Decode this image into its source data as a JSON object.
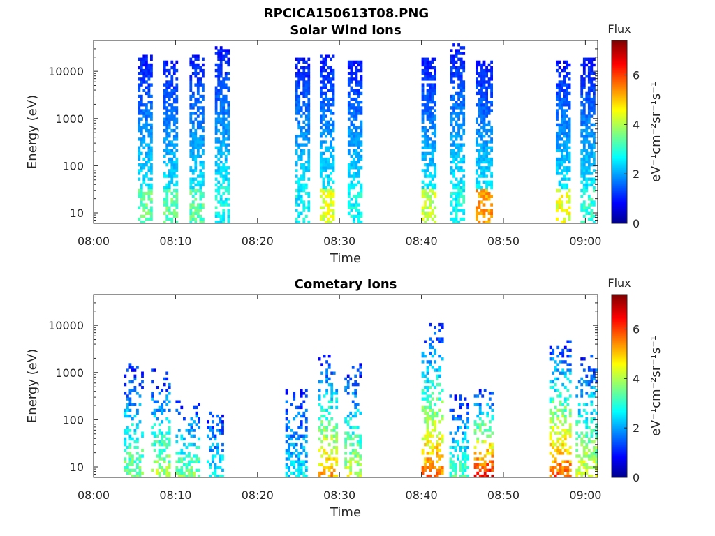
{
  "figure": {
    "title": "RPCICA150613T08.PNG"
  },
  "colorbar_scale": {
    "label": "Flux",
    "unit_label": "eV⁻¹cm⁻²sr⁻¹s⁻¹",
    "ticks": [
      0,
      2,
      4,
      6
    ],
    "range": [
      0,
      7.4
    ],
    "colormap": "jet",
    "colors": [
      "#00008f",
      "#0000ff",
      "#00ffff",
      "#ffff00",
      "#ff0000",
      "#800000"
    ]
  },
  "chart_data": [
    {
      "type": "heatmap",
      "title": "Solar Wind Ions",
      "xlabel": "Time",
      "ylabel": "Energy (eV)",
      "x_ticks": [
        "08:00",
        "08:10",
        "08:20",
        "08:30",
        "08:40",
        "08:50",
        "09:00"
      ],
      "x_range_min": [
        0,
        61.5
      ],
      "y_ticks": [
        "10",
        "100",
        "1000",
        "10000"
      ],
      "y_range_eV": [
        6,
        45000
      ],
      "y_scale": "log",
      "colorbar": {
        "label": "Flux",
        "unit": "eV⁻¹cm⁻²sr⁻¹s⁻¹",
        "ticks": [
          "0",
          "2",
          "4",
          "6"
        ],
        "range": [
          0,
          7.4
        ]
      },
      "bursts": [
        {
          "t_min": 5.4,
          "t_max": 7.0,
          "e_min": 6,
          "e_max": 21000,
          "peak_flux": 3.9,
          "low_e_peak": 3.9
        },
        {
          "t_min": 8.5,
          "t_max": 10.2,
          "e_min": 6,
          "e_max": 16000,
          "peak_flux": 3.9,
          "low_e_peak": 3.9
        },
        {
          "t_min": 11.7,
          "t_max": 13.5,
          "e_min": 6,
          "e_max": 20000,
          "peak_flux": 3.8,
          "low_e_peak": 3.8
        },
        {
          "t_min": 14.8,
          "t_max": 16.6,
          "e_min": 6,
          "e_max": 30000,
          "peak_flux": 3.3,
          "low_e_peak": 3.3
        },
        {
          "t_min": 24.6,
          "t_max": 26.2,
          "e_min": 6,
          "e_max": 18000,
          "peak_flux": 3.2,
          "low_e_peak": 3.2
        },
        {
          "t_min": 27.6,
          "t_max": 29.3,
          "e_min": 6,
          "e_max": 20000,
          "peak_flux": 4.8,
          "low_e_peak": 4.8
        },
        {
          "t_min": 31.0,
          "t_max": 32.6,
          "e_min": 6,
          "e_max": 16000,
          "peak_flux": 3.3,
          "low_e_peak": 3.3
        },
        {
          "t_min": 40.0,
          "t_max": 41.6,
          "e_min": 6,
          "e_max": 17000,
          "peak_flux": 4.6,
          "low_e_peak": 4.6
        },
        {
          "t_min": 43.5,
          "t_max": 45.1,
          "e_min": 6,
          "e_max": 35000,
          "peak_flux": 3.3,
          "low_e_peak": 3.3
        },
        {
          "t_min": 46.6,
          "t_max": 48.4,
          "e_min": 6,
          "e_max": 15000,
          "peak_flux": 5.8,
          "low_e_peak": 5.8
        },
        {
          "t_min": 56.4,
          "t_max": 58.0,
          "e_min": 6,
          "e_max": 15000,
          "peak_flux": 4.9,
          "low_e_peak": 4.9
        },
        {
          "t_min": 59.4,
          "t_max": 61.0,
          "e_min": 6,
          "e_max": 18000,
          "peak_flux": 3.5,
          "low_e_peak": 3.5
        }
      ]
    },
    {
      "type": "heatmap",
      "title": "Cometary Ions",
      "xlabel": "Time",
      "ylabel": "Energy (eV)",
      "x_ticks": [
        "08:00",
        "08:10",
        "08:20",
        "08:30",
        "08:40",
        "08:50",
        "09:00"
      ],
      "x_range_min": [
        0,
        61.5
      ],
      "y_ticks": [
        "10",
        "100",
        "1000",
        "10000"
      ],
      "y_range_eV": [
        6,
        45000
      ],
      "y_scale": "log",
      "colorbar": {
        "label": "Flux",
        "unit": "eV⁻¹cm⁻²sr⁻¹s⁻¹",
        "ticks": [
          "0",
          "2",
          "4",
          "6"
        ],
        "range": [
          0,
          7.4
        ]
      },
      "bursts": [
        {
          "t_min": 3.7,
          "t_max": 6.0,
          "e_min": 6,
          "e_max": 1600,
          "peak_flux": 4.3,
          "low_e_peak": 4.3
        },
        {
          "t_min": 7.0,
          "t_max": 9.3,
          "e_min": 6,
          "e_max": 1100,
          "peak_flux": 4.6,
          "low_e_peak": 4.6
        },
        {
          "t_min": 10.0,
          "t_max": 12.8,
          "e_min": 6,
          "e_max": 250,
          "peak_flux": 4.3,
          "low_e_peak": 4.3
        },
        {
          "t_min": 13.8,
          "t_max": 15.8,
          "e_min": 6,
          "e_max": 150,
          "peak_flux": 3.4,
          "low_e_peak": 3.4
        },
        {
          "t_min": 23.4,
          "t_max": 26.0,
          "e_min": 6,
          "e_max": 480,
          "peak_flux": 3.2,
          "low_e_peak": 3.2
        },
        {
          "t_min": 27.4,
          "t_max": 29.8,
          "e_min": 6,
          "e_max": 2300,
          "peak_flux": 5.8,
          "low_e_peak": 5.8
        },
        {
          "t_min": 30.6,
          "t_max": 32.6,
          "e_min": 6,
          "e_max": 1400,
          "peak_flux": 4.8,
          "low_e_peak": 4.8
        },
        {
          "t_min": 40.0,
          "t_max": 42.6,
          "e_min": 6,
          "e_max": 10500,
          "peak_flux": 6.2,
          "low_e_peak": 6.2
        },
        {
          "t_min": 43.4,
          "t_max": 45.6,
          "e_min": 6,
          "e_max": 380,
          "peak_flux": 3.9,
          "low_e_peak": 3.9
        },
        {
          "t_min": 46.4,
          "t_max": 48.6,
          "e_min": 6,
          "e_max": 450,
          "peak_flux": 7.0,
          "low_e_peak": 7.0
        },
        {
          "t_min": 55.6,
          "t_max": 58.0,
          "e_min": 6,
          "e_max": 4500,
          "peak_flux": 6.4,
          "low_e_peak": 6.4
        },
        {
          "t_min": 58.8,
          "t_max": 61.2,
          "e_min": 6,
          "e_max": 2500,
          "peak_flux": 5.0,
          "low_e_peak": 5.0
        }
      ]
    }
  ]
}
